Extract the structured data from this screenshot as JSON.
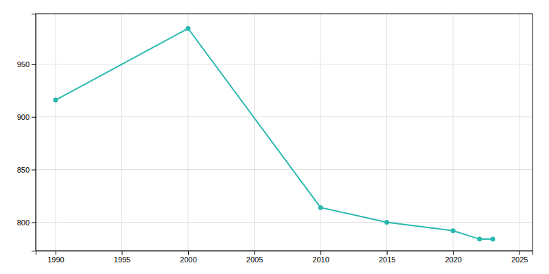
{
  "chart_data": {
    "type": "line",
    "x": [
      1990,
      2000,
      2010,
      2015,
      2020,
      2022,
      2023
    ],
    "values": [
      916,
      984,
      814,
      800,
      792,
      784,
      784
    ],
    "color": "#29b8b0",
    "marker": "circle",
    "xlim": [
      1988.5,
      2026
    ],
    "ylim": [
      773,
      998
    ],
    "xticks": [
      1990,
      1995,
      2000,
      2005,
      2010,
      2015,
      2020,
      2025
    ],
    "yticks": [
      800,
      850,
      900,
      950
    ],
    "grid": true
  }
}
